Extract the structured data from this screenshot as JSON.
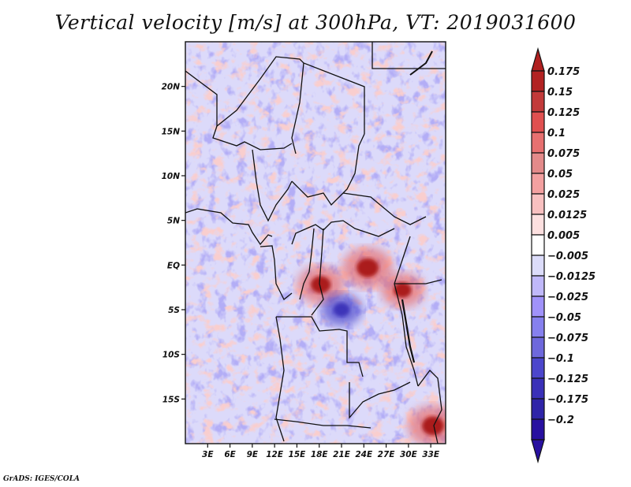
{
  "title": "Vertical velocity [m/s] at 300hPa, VT: 2019031600",
  "credit": "GrADS: IGES/COLA",
  "map": {
    "variable": "Vertical velocity",
    "units": "m/s",
    "level": "300hPa",
    "valid_time": "2019031600",
    "lon_range": [
      0,
      35
    ],
    "lat_range": [
      -20,
      25
    ],
    "x_ticks": [
      {
        "lon": 3,
        "label": "3E"
      },
      {
        "lon": 6,
        "label": "6E"
      },
      {
        "lon": 9,
        "label": "9E"
      },
      {
        "lon": 12,
        "label": "12E"
      },
      {
        "lon": 15,
        "label": "15E"
      },
      {
        "lon": 18,
        "label": "18E"
      },
      {
        "lon": 21,
        "label": "21E"
      },
      {
        "lon": 24,
        "label": "24E"
      },
      {
        "lon": 27,
        "label": "27E"
      },
      {
        "lon": 30,
        "label": "30E"
      },
      {
        "lon": 33,
        "label": "33E"
      }
    ],
    "y_ticks": [
      {
        "lat": 20,
        "label": "20N"
      },
      {
        "lat": 15,
        "label": "15N"
      },
      {
        "lat": 10,
        "label": "10N"
      },
      {
        "lat": 5,
        "label": "5N"
      },
      {
        "lat": 0,
        "label": "EQ"
      },
      {
        "lat": -5,
        "label": "5S"
      },
      {
        "lat": -10,
        "label": "10S"
      },
      {
        "lat": -15,
        "label": "15S"
      }
    ],
    "features": [
      {
        "name": "strong-updraft-congo-basin",
        "lon": 24.5,
        "lat": -0.3,
        "sign": "positive",
        "strength": 0.18
      },
      {
        "name": "updraft-great-lakes",
        "lon": 29.2,
        "lat": -2.8,
        "sign": "positive",
        "strength": 0.12
      },
      {
        "name": "updraft-west-congo",
        "lon": 18.2,
        "lat": -2.2,
        "sign": "positive",
        "strength": 0.15
      },
      {
        "name": "updraft-mozambique-cyclone",
        "lon": 33.3,
        "lat": -18.0,
        "sign": "positive",
        "strength": 0.18
      },
      {
        "name": "downdraft-southern-drc",
        "lon": 21.0,
        "lat": -5.0,
        "sign": "negative",
        "strength": -0.1
      }
    ]
  },
  "colorbar": {
    "levels": [
      {
        "label": "0.175",
        "color": "#b22222"
      },
      {
        "label": "0.15",
        "color": "#c23a3a"
      },
      {
        "label": "0.125",
        "color": "#e05050"
      },
      {
        "label": "0.1",
        "color": "#e77070"
      },
      {
        "label": "0.075",
        "color": "#e38a8a"
      },
      {
        "label": "0.05",
        "color": "#f3a0a0"
      },
      {
        "label": "0.025",
        "color": "#f8c0c0"
      },
      {
        "label": "0.0125",
        "color": "#fde0e0"
      },
      {
        "label": "0.005",
        "color": "#ffffff"
      },
      {
        "label": "−0.005",
        "color": "#dcdcfa"
      },
      {
        "label": "−0.0125",
        "color": "#c0b8fa"
      },
      {
        "label": "−0.025",
        "color": "#a092fa"
      },
      {
        "label": "−0.05",
        "color": "#8680ee"
      },
      {
        "label": "−0.075",
        "color": "#6e68dc"
      },
      {
        "label": "−0.1",
        "color": "#4c46cc"
      },
      {
        "label": "−0.125",
        "color": "#3a30b8"
      },
      {
        "label": "−0.175",
        "color": "#2f24a8"
      },
      {
        "label": "−0.2",
        "color": "#2810a0"
      }
    ],
    "top_arrow_color": "#b02020",
    "bottom_arrow_color": "#2810a0"
  }
}
